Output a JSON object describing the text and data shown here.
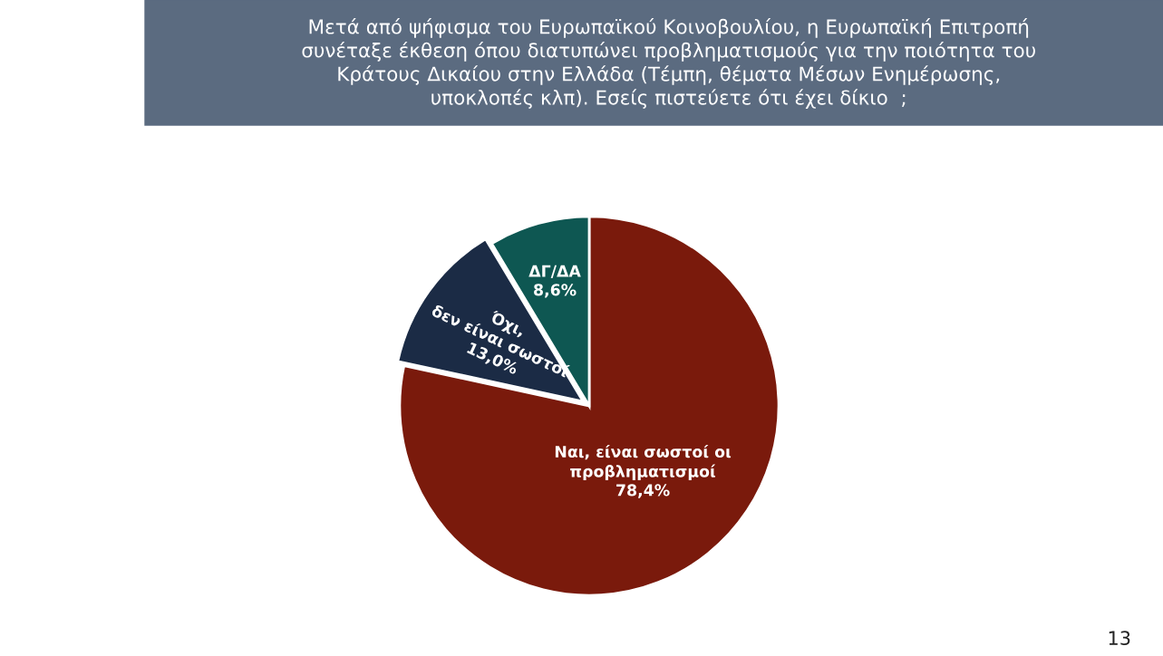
{
  "chart_data": {
    "type": "pie",
    "title": "Μετά από ψήφισμα του Ευρωπαϊκού Κοινοβουλίου, η Ευρωπαϊκή Επιτροπή\nσυνέταξε έκθεση όπου διατυπώνει προβληματισμούς για την ποιότητα του\nΚράτους Δικαίου στην Ελλάδα (Τέμπη, θέματα Μέσων Ενημέρωσης,\nυποκλοπές κλπ). Εσείς πιστεύετε ότι έχει δίκιο  ;",
    "categories": [
      "Ναι, είναι σωστοί οι\nπροβληματισμοί",
      "Όχι,\nδεν είναι σωστοί",
      "ΔΓ/ΔΑ"
    ],
    "values": [
      78.4,
      13.0,
      8.6
    ],
    "value_labels": [
      "78,4%",
      "13,0%",
      "8,6%"
    ],
    "colors": [
      "#7a1a0c",
      "#1b2b45",
      "#0e5752"
    ],
    "annotations": [
      "13"
    ]
  }
}
